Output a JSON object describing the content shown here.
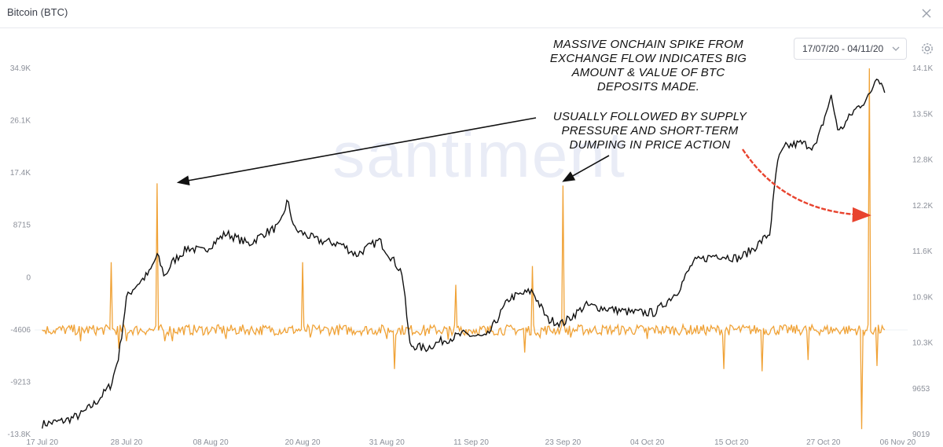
{
  "window": {
    "title": "Bitcoin (BTC)"
  },
  "controls": {
    "date_range": "17/07/20 - 04/11/20",
    "icons": {
      "close": "close-icon",
      "settings": "gear-icon",
      "dropdown": "chevron-down-icon"
    }
  },
  "watermark": "santiment",
  "annotations": {
    "top": "MASSIVE ONCHAIN SPIKE FROM EXCHANGE FLOW INDICATES BIG AMOUNT & VALUE OF BTC DEPOSITS MADE.",
    "bottom": "USUALLY FOLLOWED BY SUPPLY PRESSURE AND SHORT-TERM DUMPING IN PRICE ACTION"
  },
  "colors": {
    "price_line": "#111111",
    "flow_line": "#f0a236",
    "annotation_arrow_black": "#111111",
    "annotation_arrow_red": "#e8432e",
    "axis_text": "#8b8f99"
  },
  "chart_data": {
    "type": "line",
    "title": "",
    "x_ticks": [
      "17 Jul 20",
      "28 Jul 20",
      "08 Aug 20",
      "20 Aug 20",
      "31 Aug 20",
      "11 Sep 20",
      "23 Sep 20",
      "04 Oct 20",
      "15 Oct 20",
      "27 Oct 20",
      "06 Nov 20"
    ],
    "left_axis": {
      "ticks": [
        "34.9K",
        "26.1K",
        "17.4K",
        "8715",
        "0",
        "-4606",
        "-9213",
        "-13.8K"
      ],
      "range": [
        -13800,
        34900
      ]
    },
    "right_axis": {
      "ticks": [
        "14.1K",
        "13.5K",
        "12.8K",
        "12.2K",
        "11.6K",
        "10.9K",
        "10.3K",
        "9653",
        "9019"
      ],
      "range": [
        9019,
        14100
      ]
    },
    "series": [
      {
        "axis": "right",
        "dates": [
          "2020-07-17",
          "2020-07-20",
          "2020-07-22",
          "2020-07-24",
          "2020-07-26",
          "2020-07-27",
          "2020-07-28",
          "2020-07-29",
          "2020-07-31",
          "2020-08-01",
          "2020-08-02",
          "2020-08-03",
          "2020-08-05",
          "2020-08-07",
          "2020-08-10",
          "2020-08-13",
          "2020-08-15",
          "2020-08-17",
          "2020-08-18",
          "2020-08-19",
          "2020-08-22",
          "2020-08-25",
          "2020-08-27",
          "2020-08-30",
          "2020-09-02",
          "2020-09-03",
          "2020-09-05",
          "2020-09-07",
          "2020-09-10",
          "2020-09-13",
          "2020-09-16",
          "2020-09-19",
          "2020-09-21",
          "2020-09-23",
          "2020-09-26",
          "2020-09-29",
          "2020-10-02",
          "2020-10-05",
          "2020-10-08",
          "2020-10-10",
          "2020-10-13",
          "2020-10-16",
          "2020-10-18",
          "2020-10-20",
          "2020-10-21",
          "2020-10-22",
          "2020-10-24",
          "2020-10-26",
          "2020-10-28",
          "2020-10-29",
          "2020-10-31",
          "2020-11-02",
          "2020-11-03",
          "2020-11-04"
        ],
        "values": [
          9150,
          9200,
          9280,
          9450,
          9700,
          10100,
          10900,
          11050,
          11250,
          11500,
          11200,
          11400,
          11600,
          11550,
          11800,
          11650,
          11800,
          11900,
          12250,
          11850,
          11700,
          11650,
          11500,
          11700,
          11250,
          10250,
          10200,
          10300,
          10400,
          10350,
          10900,
          11000,
          10600,
          10550,
          10800,
          10750,
          10700,
          10700,
          11000,
          11400,
          11500,
          11450,
          11600,
          11800,
          12800,
          13000,
          13050,
          13000,
          13700,
          13200,
          13500,
          13700,
          14000,
          13800
        ]
      },
      {
        "axis": "left",
        "dates": [
          "2020-07-17",
          "2020-07-22",
          "2020-07-26",
          "2020-07-27",
          "2020-07-28",
          "2020-08-01",
          "2020-08-02",
          "2020-08-03",
          "2020-08-10",
          "2020-08-20",
          "2020-08-21",
          "2020-08-31",
          "2020-09-01",
          "2020-09-05",
          "2020-09-08",
          "2020-09-09",
          "2020-09-10",
          "2020-09-13",
          "2020-09-18",
          "2020-09-19",
          "2020-09-20",
          "2020-09-23",
          "2020-09-24",
          "2020-10-04",
          "2020-10-14",
          "2020-10-19",
          "2020-10-25",
          "2020-11-01",
          "2020-11-02",
          "2020-11-03",
          "2020-11-04"
        ],
        "values": [
          0,
          -1500,
          9000,
          -2500,
          -1500,
          19500,
          -1500,
          -1500,
          -1200,
          9000,
          -1000,
          -1200,
          -5200,
          -800,
          -1300,
          6000,
          -500,
          -600,
          -3000,
          8500,
          -1000,
          19200,
          -1000,
          -1200,
          -5200,
          -5500,
          -4000,
          -13200,
          34800,
          -4800,
          0
        ]
      }
    ]
  }
}
